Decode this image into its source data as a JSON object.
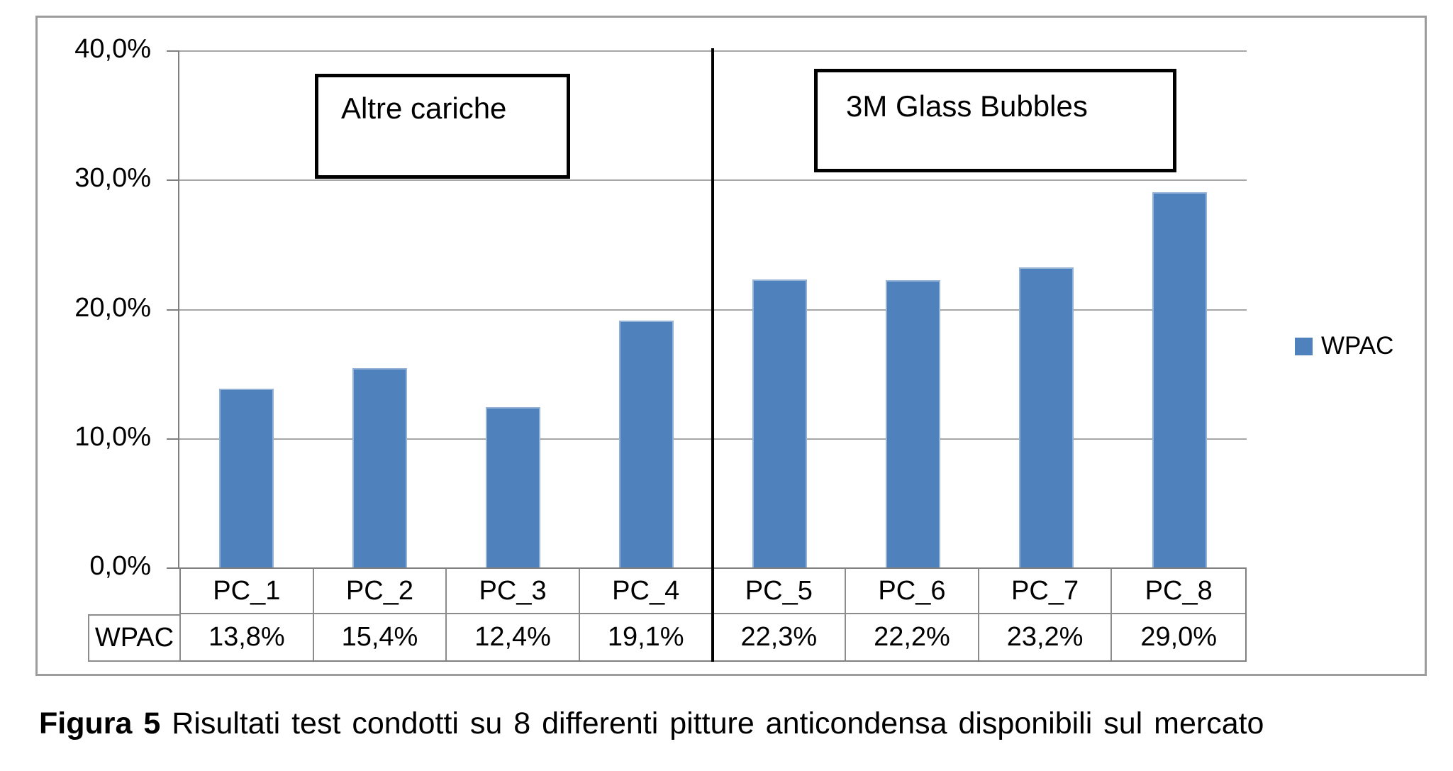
{
  "chart_data": {
    "type": "bar",
    "categories": [
      "PC_1",
      "PC_2",
      "PC_3",
      "PC_4",
      "PC_5",
      "PC_6",
      "PC_7",
      "PC_8"
    ],
    "series": [
      {
        "name": "WPAC",
        "values": [
          13.8,
          15.4,
          12.4,
          19.1,
          22.3,
          22.2,
          23.2,
          29.0
        ]
      }
    ],
    "value_labels": [
      "13,8%",
      "15,4%",
      "12,4%",
      "19,1%",
      "22,3%",
      "22,2%",
      "23,2%",
      "29,0%"
    ],
    "y_ticks": [
      {
        "value": 40,
        "label": "40,0%"
      },
      {
        "value": 30,
        "label": "30,0%"
      },
      {
        "value": 20,
        "label": "20,0%"
      },
      {
        "value": 10,
        "label": "10,0%"
      },
      {
        "value": 0,
        "label": "0,0%"
      }
    ],
    "ylim": [
      0,
      40
    ],
    "grid": true,
    "legend": {
      "label": "WPAC",
      "position": "right"
    },
    "annotations": [
      "Altre cariche",
      "3M Glass Bubbles"
    ],
    "table_row_header": "WPAC",
    "group_divider_after_category": "PC_4"
  },
  "caption": {
    "figure_label": "Figura 5",
    "text": "Risultati test condotti su 8 differenti pitture anticondensa disponibili sul mercato"
  },
  "colors": {
    "bar": "#4F81BD",
    "bar_border": "#95B3D7",
    "gridline": "#A6A6A6",
    "axis": "#808080",
    "table_border": "#8C8C8C",
    "frame": "#9C9C9C",
    "divider": "#000000",
    "annotation_border": "#000000"
  }
}
